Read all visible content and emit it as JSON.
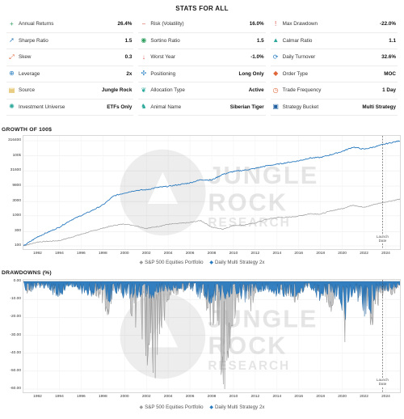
{
  "stats_title": "STATS FOR ALL",
  "stats": [
    {
      "icon": "plus-icon",
      "glyph": "+",
      "color": "#2e9e5e",
      "label": "Annual Returns",
      "value": "26.4%"
    },
    {
      "icon": "minus-icon",
      "glyph": "−",
      "color": "#d9534f",
      "label": "Risk (Volatility)",
      "value": "16.0%"
    },
    {
      "icon": "exclamation-icon",
      "glyph": "!",
      "color": "#d9534f",
      "label": "Max Drawdown",
      "value": "-22.0%"
    },
    {
      "icon": "arrow-up-icon",
      "glyph": "➚",
      "color": "#2a7fc1",
      "label": "Sharpe Ratio",
      "value": "1.5"
    },
    {
      "icon": "gauge-icon",
      "glyph": "◉",
      "color": "#2e9e5e",
      "label": "Sortino Ratio",
      "value": "1.5"
    },
    {
      "icon": "mountain-icon",
      "glyph": "▲",
      "color": "#2aa89a",
      "label": "Calmar Ratio",
      "value": "1.1"
    },
    {
      "icon": "skew-icon",
      "glyph": "⤢",
      "color": "#e0663a",
      "label": "Skew",
      "value": "0.3"
    },
    {
      "icon": "arrow-down-icon",
      "glyph": "↓",
      "color": "#d9534f",
      "label": "Worst Year",
      "value": "-1.0%"
    },
    {
      "icon": "refresh-icon",
      "glyph": "⟳",
      "color": "#2a7fc1",
      "label": "Daily Turnover",
      "value": "32.6%"
    },
    {
      "icon": "leverage-icon",
      "glyph": "⊕",
      "color": "#2a7fc1",
      "label": "Leverage",
      "value": "2x"
    },
    {
      "icon": "compass-icon",
      "glyph": "✣",
      "color": "#2a7fc1",
      "label": "Positioning",
      "value": "Long Only"
    },
    {
      "icon": "tag-icon",
      "glyph": "◆",
      "color": "#e0663a",
      "label": "Order Type",
      "value": "MOC"
    },
    {
      "icon": "source-icon",
      "glyph": "▤",
      "color": "#d4a017",
      "label": "Source",
      "value": "Jungle Rock"
    },
    {
      "icon": "leaf-icon",
      "glyph": "❦",
      "color": "#2aa89a",
      "label": "Allocation Type",
      "value": "Active"
    },
    {
      "icon": "clock-icon",
      "glyph": "◷",
      "color": "#e0663a",
      "label": "Trade Frequency",
      "value": "1 Day"
    },
    {
      "icon": "universe-icon",
      "glyph": "✺",
      "color": "#2aa89a",
      "label": "Investment Universe",
      "value": "ETFs Only"
    },
    {
      "icon": "tiger-icon",
      "glyph": "♞",
      "color": "#2aa89a",
      "label": "Animal Name",
      "value": "Siberian Tiger"
    },
    {
      "icon": "bucket-icon",
      "glyph": "▣",
      "color": "#1f5fa0",
      "label": "Strategy Bucket",
      "value": "Multi Strategy"
    }
  ],
  "growth_title": "GROWTH OF 100$",
  "drawdown_title": "DRAWDOWNS (%)",
  "watermark": {
    "line1": "JUNGLE",
    "line2": "ROCK",
    "line3": "RESEARCH"
  },
  "launch_label": "Launch Date",
  "legend": {
    "benchmark": "S&P 500 Equities Portfolio",
    "strategy": "Daily Multi Strategy 2x",
    "benchmark_color": "#9a9a9a",
    "strategy_color": "#2a7abf"
  },
  "chart_data": [
    {
      "type": "line",
      "title": "GROWTH OF 100$",
      "yscale": "log",
      "ylim": [
        100,
        316400
      ],
      "yticks": [
        "316400",
        "100k",
        "31600",
        "9800",
        "3000",
        "1000",
        "300",
        "100"
      ],
      "xticks": [
        "1992",
        "1994",
        "1996",
        "1998",
        "2000",
        "2002",
        "2004",
        "2006",
        "2008",
        "2010",
        "2012",
        "2014",
        "2016",
        "2018",
        "2020",
        "2022",
        "2024"
      ],
      "xlim": [
        1990.7,
        2025.3
      ],
      "launch_date": 2023.7,
      "series": [
        {
          "name": "S&P 500 Equities Portfolio",
          "x": [
            1990.7,
            1992,
            1994,
            1995,
            1997,
            1998,
            1999,
            2000,
            2001,
            2002,
            2003,
            2004,
            2006,
            2007,
            2008,
            2009,
            2010,
            2011,
            2012,
            2013,
            2014,
            2015,
            2016,
            2017,
            2018,
            2019,
            2020,
            2021,
            2022,
            2023,
            2024,
            2025.3
          ],
          "values": [
            100,
            135,
            150,
            190,
            310,
            390,
            480,
            540,
            470,
            380,
            440,
            520,
            600,
            700,
            420,
            360,
            480,
            500,
            580,
            760,
            880,
            900,
            980,
            1180,
            1150,
            1480,
            1750,
            2300,
            1900,
            2450,
            2900,
            3600
          ]
        },
        {
          "name": "Daily Multi Strategy 2x",
          "x": [
            1990.7,
            1992,
            1994,
            1995,
            1997,
            1998,
            1999,
            2000,
            2001,
            2002,
            2003,
            2004,
            2006,
            2007,
            2008,
            2009,
            2010,
            2011,
            2012,
            2013,
            2014,
            2015,
            2016,
            2017,
            2018,
            2019,
            2020,
            2021,
            2022,
            2023,
            2024,
            2025.3
          ],
          "values": [
            100,
            200,
            420,
            700,
            1500,
            2300,
            4600,
            5800,
            7000,
            7400,
            8800,
            9600,
            12500,
            16000,
            15500,
            24000,
            30000,
            33000,
            38000,
            46000,
            52000,
            60000,
            68000,
            84000,
            88000,
            110000,
            140000,
            195000,
            165000,
            200000,
            250000,
            316400
          ]
        }
      ]
    },
    {
      "type": "area",
      "title": "DRAWDOWNS (%)",
      "ylim": [
        -60,
        0
      ],
      "yticks": [
        "0.00",
        "-10.00",
        "-20.00",
        "-30.00",
        "-40.00",
        "-50.00",
        "-60.00"
      ],
      "xticks": [
        "1992",
        "1994",
        "1996",
        "1998",
        "2000",
        "2002",
        "2004",
        "2006",
        "2008",
        "2010",
        "2012",
        "2014",
        "2016",
        "2018",
        "2020",
        "2022",
        "2024"
      ],
      "xlim": [
        1990.7,
        2025.3
      ],
      "launch_date": 2023.7,
      "series": [
        {
          "name": "S&P 500 Equities Portfolio",
          "x": [
            1990.7,
            1991,
            1992,
            1993,
            1994,
            1995,
            1996,
            1997,
            1997.8,
            1998.6,
            1999,
            2000,
            2000.7,
            2001.5,
            2002,
            2002.8,
            2003.5,
            2004,
            2005,
            2006,
            2007,
            2007.8,
            2008.5,
            2009.2,
            2009.8,
            2010.4,
            2011,
            2011.7,
            2012,
            2013,
            2014,
            2015,
            2015.8,
            2016.2,
            2017,
            2018,
            2018.9,
            2019.5,
            2020,
            2020.2,
            2020.6,
            2021,
            2022,
            2022.8,
            2023.5,
            2024,
            2024.6,
            2025.3
          ],
          "values": [
            0,
            -6,
            -2,
            -3,
            -8,
            -1,
            -4,
            -6,
            -10,
            -19,
            -3,
            -7,
            -18,
            -30,
            -44,
            -49,
            -30,
            -10,
            -6,
            -4,
            -2,
            -22,
            -38,
            -54,
            -28,
            -12,
            -4,
            -18,
            -6,
            -2,
            -4,
            -8,
            -12,
            -6,
            -2,
            -6,
            -18,
            -4,
            -2,
            -33,
            -8,
            -2,
            -14,
            -24,
            -10,
            -4,
            -8,
            -2
          ]
        },
        {
          "name": "Daily Multi Strategy 2x",
          "x": [
            1990.7,
            1991,
            1992,
            1993,
            1994,
            1995,
            1996,
            1997,
            1998,
            1998.7,
            1999,
            2000,
            2001,
            2002,
            2003,
            2004,
            2005,
            2006,
            2007,
            2008,
            2009,
            2010,
            2011,
            2012,
            2013,
            2014,
            2015,
            2016,
            2017,
            2018,
            2019,
            2020,
            2020.3,
            2021,
            2022,
            2022.5,
            2023,
            2024,
            2025.3
          ],
          "values": [
            0,
            -7,
            -3,
            -4,
            -10,
            -2,
            -6,
            -8,
            -5,
            -13,
            -6,
            -9,
            -8,
            -11,
            -7,
            -5,
            -6,
            -4,
            -9,
            -12,
            -10,
            -7,
            -11,
            -6,
            -5,
            -8,
            -9,
            -7,
            -4,
            -10,
            -6,
            -15,
            -22,
            -5,
            -17,
            -19,
            -8,
            -5,
            -3
          ]
        }
      ]
    }
  ]
}
